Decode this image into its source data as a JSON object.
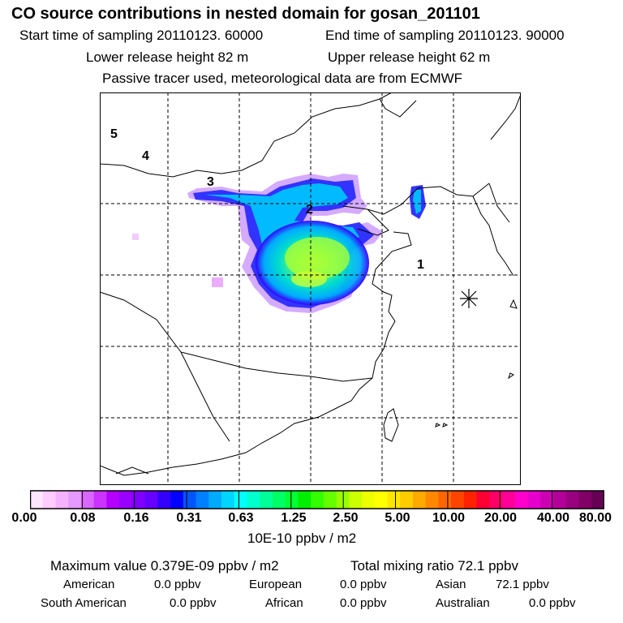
{
  "title": "CO  source contributions in nested domain for gosan_201101",
  "start_time": "Start time of sampling 20110123. 60000",
  "end_time": "End time of sampling 20110123. 90000",
  "lower_release": "Lower release height   82 m",
  "upper_release": "Upper release height   62 m",
  "tracer_note": "Passive tracer used, meteorological data are from ECMWF",
  "markers": [
    "1",
    "2",
    "3",
    "4",
    "5"
  ],
  "colorbar": {
    "labels": [
      "0.00",
      "0.08",
      "0.16",
      "0.31",
      "0.63",
      "1.25",
      "2.50",
      "5.00",
      "10.00",
      "20.00",
      "40.00",
      "80.00"
    ],
    "unit": "10E-10 ppbv / m2",
    "colors": [
      "#ffe6ff",
      "#ffccff",
      "#f5b3ff",
      "#e699ff",
      "#d966ff",
      "#cc33ff",
      "#b300ff",
      "#9900ff",
      "#7f00ff",
      "#6600ff",
      "#3300ff",
      "#0000ff",
      "#0055ff",
      "#0080ff",
      "#00aaff",
      "#00d5ff",
      "#00ffff",
      "#00ffcc",
      "#00ff99",
      "#00ff66",
      "#00ff33",
      "#00ee00",
      "#33ff00",
      "#66ff00",
      "#99ff00",
      "#ccff00",
      "#eeff00",
      "#ffff00",
      "#ffe600",
      "#ffcc00",
      "#ffaa00",
      "#ff8800",
      "#ff6600",
      "#ff4400",
      "#ff2200",
      "#ff0033",
      "#ff0066",
      "#ff0099",
      "#ff00cc",
      "#e600cc",
      "#cc00b3",
      "#b30099",
      "#990080",
      "#800066",
      "#660055"
    ]
  },
  "stats": {
    "max_value": "Maximum value  0.379E-09 ppbv / m2",
    "total_mixing": "Total mixing ratio       72.1 ppbv",
    "american": "American",
    "american_val": "0.0 ppbv",
    "european": "European",
    "european_val": "0.0 ppbv",
    "asian": "Asian",
    "asian_val": "72.1 ppbv",
    "south_american": "South American",
    "south_american_val": "0.0 ppbv",
    "african": "African",
    "african_val": "0.0 ppbv",
    "australian": "Australian",
    "australian_val": "0.0 ppbv"
  }
}
